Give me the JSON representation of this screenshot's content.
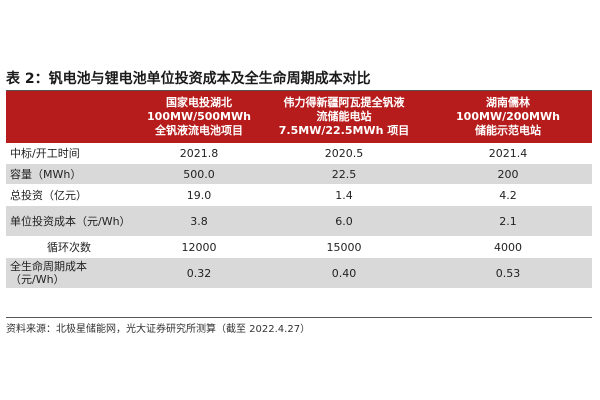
{
  "title": "表 2：钒电池与锂电池单位投资成本及全生命周期成本对比",
  "headers": [
    {
      "lines": [
        ""
      ]
    },
    {
      "lines": [
        "国家电投湖北",
        "100MW/500MWh",
        "全钒液流电池项目"
      ]
    },
    {
      "lines": [
        "伟力得新疆阿瓦提全钒液",
        "流储能电站",
        "7.5MW/22.5MWh 项目"
      ]
    },
    {
      "lines": [
        "湖南儒林",
        "100MW/200MWh",
        "储能示范电站"
      ]
    }
  ],
  "rows": [
    {
      "label": "中标/开工时间",
      "values": [
        "2021.8",
        "2020.5",
        "2021.4"
      ]
    },
    {
      "label": "容量（MWh）",
      "values": [
        "500.0",
        "22.5",
        "200"
      ]
    },
    {
      "label": "总投资（亿元）",
      "values": [
        "19.0",
        "1.4",
        "4.2"
      ]
    },
    {
      "label": "单位投资成本（元/Wh）",
      "values": [
        "3.8",
        "6.0",
        "2.1"
      ]
    },
    {
      "label": "循环次数",
      "values": [
        "12000",
        "15000",
        "4000"
      ]
    },
    {
      "label": "全生命周期成本（元/Wh）",
      "values": [
        "0.32",
        "0.40",
        "0.53"
      ]
    }
  ],
  "source": "资料来源：北极星储能网，光大证券研究所测算（截至 2022.4.27）",
  "colors": {
    "header_bg": "#b71c1c",
    "stripe_bg": "#d9d9d9"
  }
}
